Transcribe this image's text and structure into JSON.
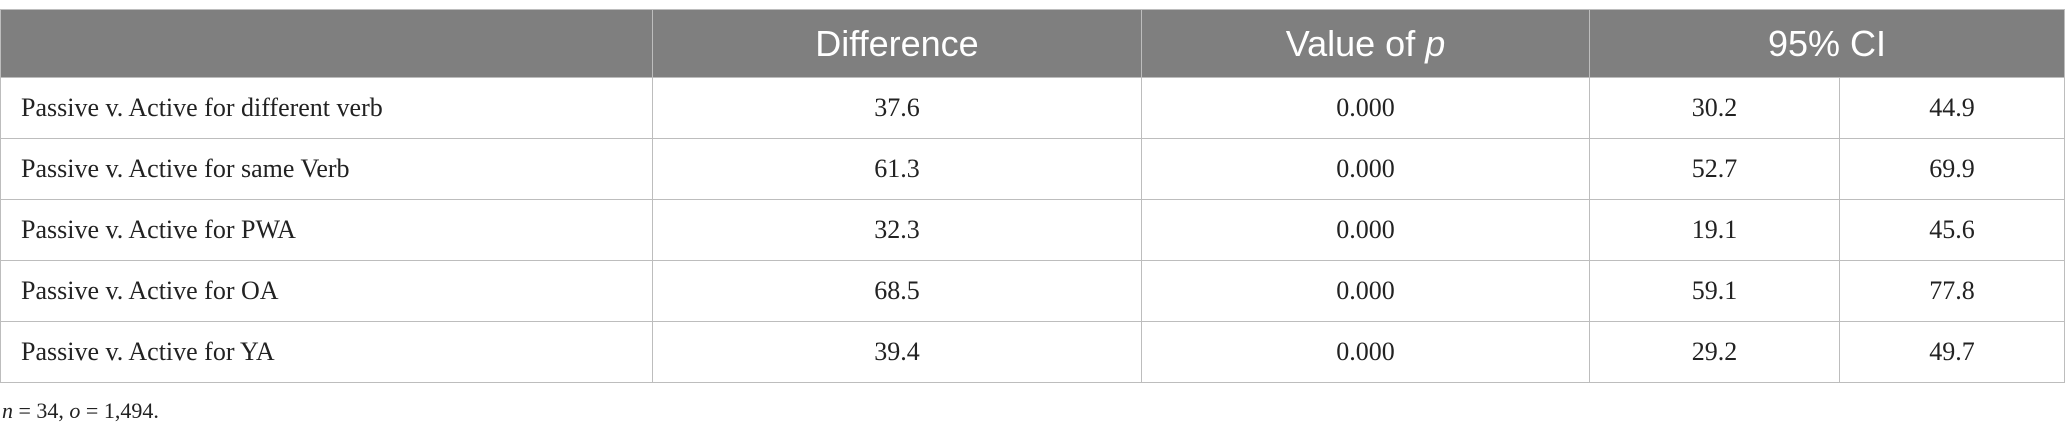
{
  "table": {
    "header": {
      "difference": "Difference",
      "p_prefix": "Value of ",
      "p_symbol": "p",
      "ci": "95% CI"
    },
    "rows": [
      [
        "Passive v. Active for different verb",
        "37.6",
        "0.000",
        "30.2",
        "44.9"
      ],
      [
        "Passive v. Active for same Verb",
        "61.3",
        "0.000",
        "52.7",
        "69.9"
      ],
      [
        "Passive v. Active for PWA",
        "32.3",
        "0.000",
        "19.1",
        "45.6"
      ],
      [
        "Passive v. Active for OA",
        "68.5",
        "0.000",
        "59.1",
        "77.8"
      ],
      [
        "Passive v. Active for YA",
        "39.4",
        "0.000",
        "29.2",
        "49.7"
      ]
    ]
  },
  "footnote": {
    "n_symbol": "n",
    "n_text": " = 34, ",
    "o_symbol": "o",
    "o_text": " = 1,494."
  }
}
